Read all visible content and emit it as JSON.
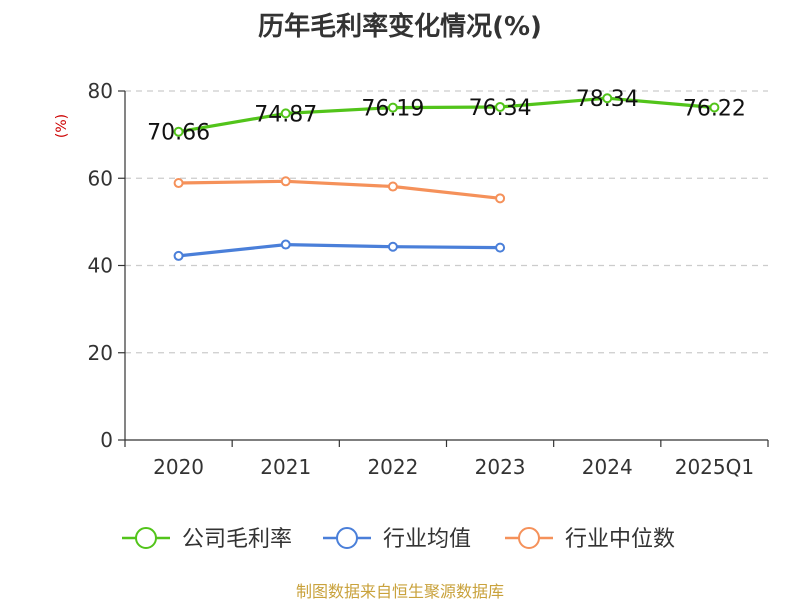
{
  "title": "历年毛利率变化情况(%)",
  "source": "制图数据来自恒生聚源数据库",
  "chart_data": {
    "type": "line",
    "title": "历年毛利率变化情况(%)",
    "ylabel": "(%)",
    "ylim": [
      0,
      80
    ],
    "yticks": [
      0,
      20,
      40,
      60,
      80
    ],
    "categories": [
      "2020",
      "2021",
      "2022",
      "2023",
      "2024",
      "2025Q1"
    ],
    "grid": true,
    "legend_position": "bottom",
    "series": [
      {
        "name": "公司毛利率",
        "color": "#52c41a",
        "values": [
          70.66,
          74.87,
          76.19,
          76.34,
          78.34,
          76.22
        ],
        "show_labels": true
      },
      {
        "name": "行业均值",
        "color": "#4a7fd9",
        "values": [
          42.2,
          44.8,
          44.3,
          44.1,
          null,
          null
        ],
        "show_labels": false
      },
      {
        "name": "行业中位数",
        "color": "#f5915a",
        "values": [
          58.9,
          59.3,
          58.1,
          55.4,
          null,
          null
        ],
        "show_labels": false
      }
    ]
  }
}
